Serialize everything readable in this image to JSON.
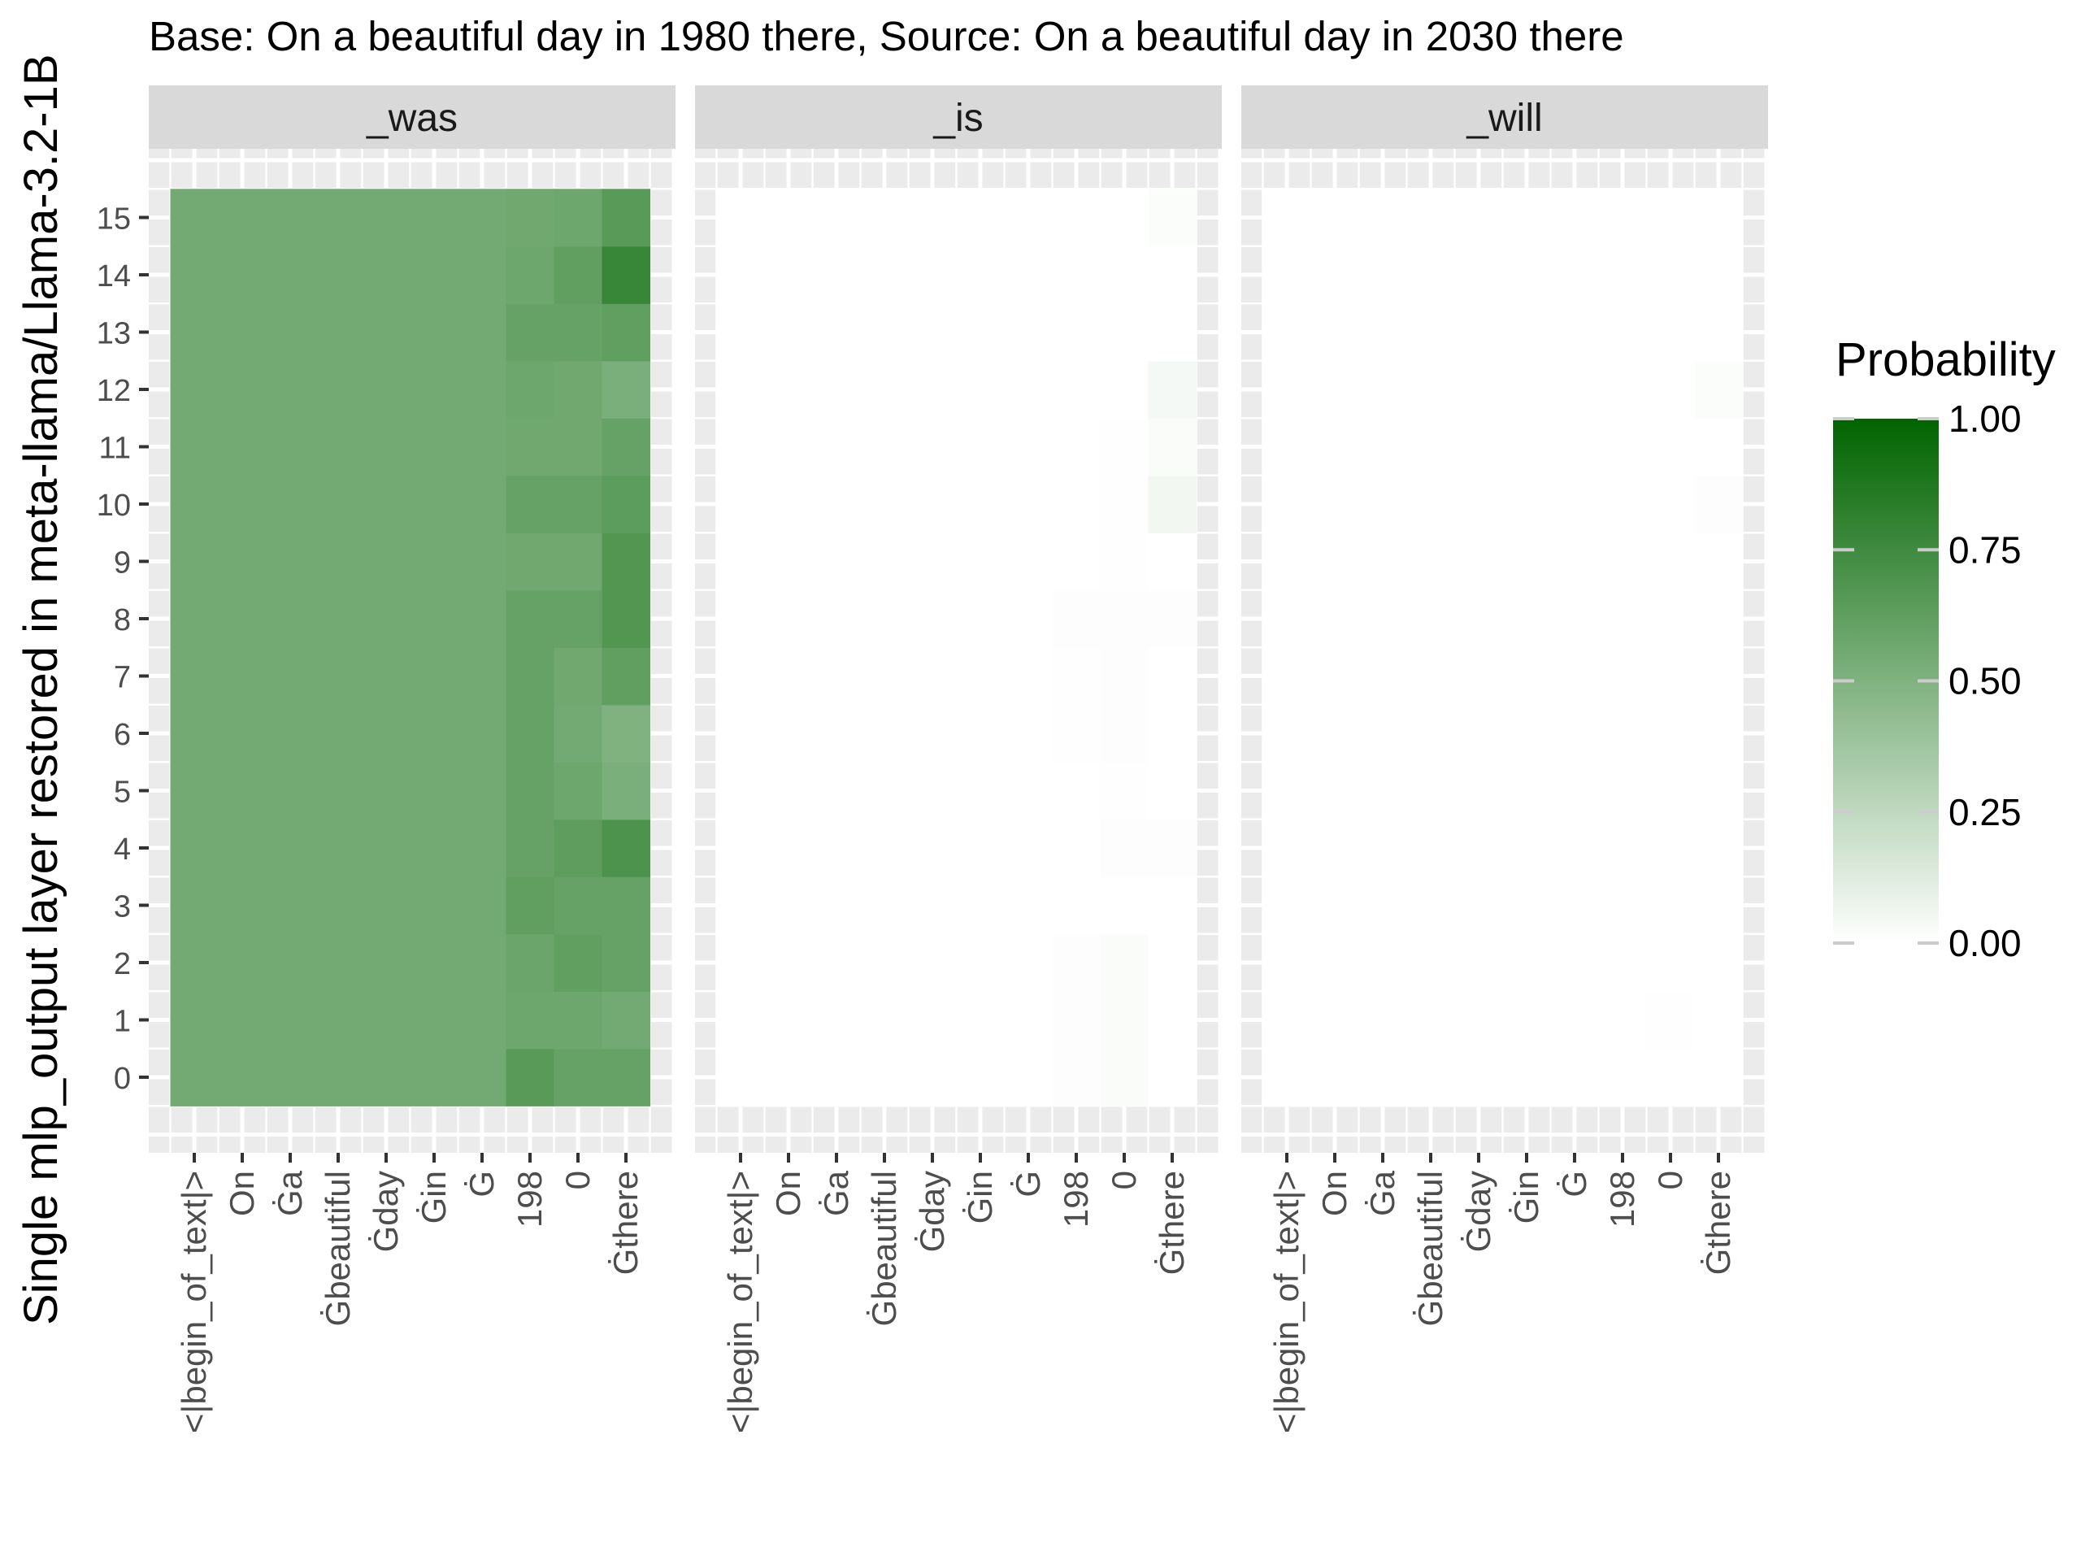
{
  "chart_data": {
    "type": "heatmap",
    "title": "Base: On a beautiful day in 1980 there, Source: On a beautiful day in 2030 there",
    "xlabel": "",
    "ylabel": "Single mlp_output layer restored in meta-llama/Llama-3.2-1B",
    "legend": {
      "title": "Probability",
      "position": "right",
      "ticks": [
        "0.00",
        "0.25",
        "0.50",
        "0.75",
        "1.00"
      ],
      "tick_values": [
        0,
        0.25,
        0.5,
        0.75,
        1.0
      ],
      "range": [
        0,
        1
      ],
      "color_low": "#ffffff",
      "color_high": "#006400"
    },
    "x_tokens": [
      "<|begin_of_text|>",
      "On",
      "Ġa",
      "Ġbeautiful",
      "Ġday",
      "Ġin",
      "Ġ",
      "198",
      "0",
      "Ġthere"
    ],
    "y_ticks": [
      "0",
      "1",
      "2",
      "3",
      "4",
      "5",
      "6",
      "7",
      "8",
      "9",
      "10",
      "11",
      "12",
      "13",
      "14",
      "15"
    ],
    "y_layers": [
      0,
      1,
      2,
      3,
      4,
      5,
      6,
      7,
      8,
      9,
      10,
      11,
      12,
      13,
      14,
      15
    ],
    "panels": [
      {
        "label": "_was",
        "values": [
          [
            0.55,
            0.55,
            0.55,
            0.55,
            0.55,
            0.55,
            0.55,
            0.65,
            0.6,
            0.6
          ],
          [
            0.55,
            0.55,
            0.55,
            0.55,
            0.55,
            0.55,
            0.55,
            0.57,
            0.57,
            0.55
          ],
          [
            0.55,
            0.55,
            0.55,
            0.55,
            0.55,
            0.55,
            0.55,
            0.58,
            0.62,
            0.6
          ],
          [
            0.55,
            0.55,
            0.55,
            0.55,
            0.55,
            0.55,
            0.55,
            0.62,
            0.6,
            0.6
          ],
          [
            0.55,
            0.55,
            0.55,
            0.55,
            0.55,
            0.55,
            0.55,
            0.6,
            0.63,
            0.7
          ],
          [
            0.55,
            0.55,
            0.55,
            0.55,
            0.55,
            0.55,
            0.55,
            0.6,
            0.57,
            0.52
          ],
          [
            0.55,
            0.55,
            0.55,
            0.55,
            0.55,
            0.55,
            0.55,
            0.6,
            0.55,
            0.5
          ],
          [
            0.55,
            0.55,
            0.55,
            0.55,
            0.55,
            0.55,
            0.55,
            0.6,
            0.56,
            0.62
          ],
          [
            0.55,
            0.55,
            0.55,
            0.55,
            0.55,
            0.55,
            0.55,
            0.6,
            0.6,
            0.68
          ],
          [
            0.55,
            0.55,
            0.55,
            0.55,
            0.55,
            0.55,
            0.55,
            0.56,
            0.56,
            0.68
          ],
          [
            0.55,
            0.55,
            0.55,
            0.55,
            0.55,
            0.55,
            0.55,
            0.6,
            0.6,
            0.64
          ],
          [
            0.55,
            0.55,
            0.55,
            0.55,
            0.55,
            0.55,
            0.55,
            0.56,
            0.56,
            0.6
          ],
          [
            0.55,
            0.55,
            0.55,
            0.55,
            0.55,
            0.55,
            0.55,
            0.57,
            0.56,
            0.52
          ],
          [
            0.55,
            0.55,
            0.55,
            0.55,
            0.55,
            0.55,
            0.55,
            0.6,
            0.6,
            0.62
          ],
          [
            0.55,
            0.55,
            0.55,
            0.55,
            0.55,
            0.55,
            0.55,
            0.57,
            0.62,
            0.78
          ],
          [
            0.55,
            0.55,
            0.55,
            0.55,
            0.55,
            0.55,
            0.55,
            0.56,
            0.57,
            0.65
          ]
        ]
      },
      {
        "label": "_is",
        "values": [
          [
            0,
            0,
            0,
            0,
            0,
            0,
            0,
            0.01,
            0.02,
            0
          ],
          [
            0,
            0,
            0,
            0,
            0,
            0,
            0,
            0.01,
            0.02,
            0
          ],
          [
            0,
            0,
            0,
            0,
            0,
            0,
            0,
            0.01,
            0.02,
            0
          ],
          [
            0,
            0,
            0,
            0,
            0,
            0,
            0,
            0,
            0,
            0
          ],
          [
            0,
            0,
            0,
            0,
            0,
            0,
            0,
            0,
            0.01,
            0.01
          ],
          [
            0,
            0,
            0,
            0,
            0,
            0,
            0,
            0,
            0.005,
            0
          ],
          [
            0,
            0,
            0,
            0,
            0,
            0,
            0,
            0.005,
            0.01,
            0
          ],
          [
            0,
            0,
            0,
            0,
            0,
            0,
            0,
            0.005,
            0.01,
            0
          ],
          [
            0,
            0,
            0,
            0,
            0,
            0,
            0,
            0.01,
            0.01,
            0.01
          ],
          [
            0,
            0,
            0,
            0,
            0,
            0,
            0,
            0,
            0.005,
            0
          ],
          [
            0,
            0,
            0,
            0,
            0,
            0,
            0,
            0,
            0.005,
            0.05
          ],
          [
            0,
            0,
            0,
            0,
            0,
            0,
            0,
            0,
            0.005,
            0.02
          ],
          [
            0,
            0,
            0,
            0,
            0,
            0,
            0,
            0,
            0,
            0.04
          ],
          [
            0,
            0,
            0,
            0,
            0,
            0,
            0,
            0,
            0,
            0
          ],
          [
            0,
            0,
            0,
            0,
            0,
            0,
            0,
            0,
            0,
            0
          ],
          [
            0,
            0,
            0,
            0,
            0,
            0,
            0,
            0,
            0,
            0.015
          ]
        ]
      },
      {
        "label": "_will",
        "values": [
          [
            0,
            0,
            0,
            0,
            0,
            0,
            0,
            0,
            0,
            0
          ],
          [
            0,
            0,
            0,
            0,
            0,
            0,
            0,
            0,
            0.005,
            0
          ],
          [
            0,
            0,
            0,
            0,
            0,
            0,
            0,
            0,
            0,
            0
          ],
          [
            0,
            0,
            0,
            0,
            0,
            0,
            0,
            0,
            0,
            0
          ],
          [
            0,
            0,
            0,
            0,
            0,
            0,
            0,
            0,
            0,
            0
          ],
          [
            0,
            0,
            0,
            0,
            0,
            0,
            0,
            0,
            0,
            0
          ],
          [
            0,
            0,
            0,
            0,
            0,
            0,
            0,
            0,
            0,
            0
          ],
          [
            0,
            0,
            0,
            0,
            0,
            0,
            0,
            0,
            0,
            0
          ],
          [
            0,
            0,
            0,
            0,
            0,
            0,
            0,
            0,
            0,
            0
          ],
          [
            0,
            0,
            0,
            0,
            0,
            0,
            0,
            0,
            0,
            0
          ],
          [
            0,
            0,
            0,
            0,
            0,
            0,
            0,
            0,
            0,
            0.01
          ],
          [
            0,
            0,
            0,
            0,
            0,
            0,
            0,
            0,
            0,
            0
          ],
          [
            0,
            0,
            0,
            0,
            0,
            0,
            0,
            0,
            0,
            0.015
          ],
          [
            0,
            0,
            0,
            0,
            0,
            0,
            0,
            0,
            0,
            0
          ],
          [
            0,
            0,
            0,
            0,
            0,
            0,
            0,
            0,
            0,
            0
          ],
          [
            0,
            0,
            0,
            0,
            0,
            0,
            0,
            0,
            0,
            0
          ]
        ]
      }
    ]
  }
}
